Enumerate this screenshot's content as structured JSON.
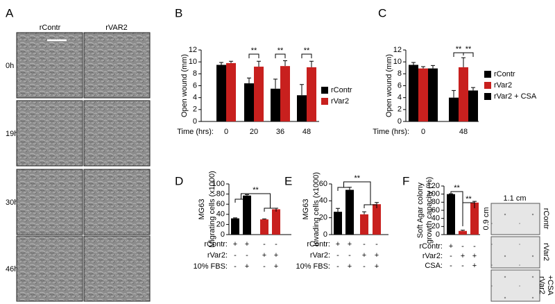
{
  "panel_a": {
    "label": "A",
    "columns": [
      "rContr",
      "rVAR2"
    ],
    "rows": [
      "0h",
      "19h",
      "30h",
      "46h"
    ]
  },
  "chart_data": [
    {
      "panel": "B",
      "type": "bar",
      "ylabel": "Open wound (mm)",
      "x_prefix": "Time (hrs):",
      "categories": [
        "0",
        "20",
        "36",
        "48"
      ],
      "series": [
        {
          "name": "rContr",
          "color": "#000000",
          "values": [
            9.5,
            6.4,
            5.5,
            4.4
          ],
          "errors": [
            0.4,
            0.9,
            1.6,
            1.8
          ]
        },
        {
          "name": "rVar2",
          "color": "#c8201e",
          "values": [
            9.8,
            9.2,
            9.3,
            9.1
          ],
          "errors": [
            0.3,
            0.9,
            0.9,
            1.0
          ]
        }
      ],
      "ylim": [
        0,
        12
      ],
      "yticks": [
        0,
        2,
        4,
        6,
        8,
        10,
        12
      ],
      "annotations": [
        "**",
        "**",
        "**"
      ]
    },
    {
      "panel": "C",
      "type": "bar",
      "ylabel": "Open wound (mm)",
      "x_prefix": "Time (hrs):",
      "categories": [
        "0",
        "48"
      ],
      "series": [
        {
          "name": "rContr",
          "color": "#000000",
          "values": [
            9.5,
            4.0
          ],
          "errors": [
            0.4,
            1.2
          ]
        },
        {
          "name": "rVar2",
          "color": "#c8201e",
          "values": [
            8.9,
            9.1
          ],
          "errors": [
            0.3,
            1.6
          ]
        },
        {
          "name": "rVar2 + CSA",
          "color": "#000000",
          "values": [
            8.9,
            5.2
          ],
          "errors": [
            0.5,
            0.5
          ]
        }
      ],
      "ylim": [
        0,
        12
      ],
      "yticks": [
        0,
        2,
        4,
        6,
        8,
        10,
        12
      ],
      "annotations": [
        "**",
        "**"
      ]
    },
    {
      "panel": "D",
      "type": "bar",
      "title": "MG63",
      "ylabel": [
        "Migrating cells (x1000)"
      ],
      "values": [
        32,
        77,
        30,
        50
      ],
      "errors": [
        1,
        2,
        1,
        2
      ],
      "colors": [
        "#000000",
        "#000000",
        "#c8201e",
        "#c8201e"
      ],
      "conditions": [
        {
          "label": "rContr:",
          "signs": [
            "+",
            "+",
            "-",
            "-"
          ]
        },
        {
          "label": "rVar2:",
          "signs": [
            "-",
            "-",
            "+",
            "+"
          ]
        },
        {
          "label": "10% FBS:",
          "signs": [
            "-",
            "+",
            "-",
            "+"
          ]
        }
      ],
      "ylim": [
        0,
        100
      ],
      "yticks": [
        0,
        20,
        40,
        60,
        80,
        100
      ],
      "annotations": [
        "**"
      ]
    },
    {
      "panel": "E",
      "type": "bar",
      "title": "MG63",
      "ylabel": [
        "Invading cells (x1000)"
      ],
      "values": [
        27,
        53,
        24,
        36
      ],
      "errors": [
        4,
        3,
        3,
        2
      ],
      "colors": [
        "#000000",
        "#000000",
        "#c8201e",
        "#c8201e"
      ],
      "conditions": [
        {
          "label": "rContr:",
          "signs": [
            "+",
            "+",
            "-",
            "-"
          ]
        },
        {
          "label": "rVar2:",
          "signs": [
            "-",
            "-",
            "+",
            "+"
          ]
        },
        {
          "label": "10% FBS:",
          "signs": [
            "-",
            "+",
            "-",
            "+"
          ]
        }
      ],
      "ylim": [
        0,
        60
      ],
      "yticks": [
        0,
        20,
        40,
        60
      ],
      "annotations": [
        "**"
      ]
    },
    {
      "panel": "F",
      "type": "bar",
      "ylabel": [
        "Soft Agar colony",
        "growth capacity (%)"
      ],
      "values": [
        100,
        9,
        79
      ],
      "errors": [
        1,
        2,
        3
      ],
      "colors": [
        "#000000",
        "#c8201e",
        "#c8201e"
      ],
      "conditions": [
        {
          "label": "rContr:",
          "signs": [
            "+",
            "-",
            "-"
          ]
        },
        {
          "label": "rVar2:",
          "signs": [
            "-",
            "+",
            "+"
          ]
        },
        {
          "label": "CSA:",
          "signs": [
            "-",
            "-",
            "+"
          ]
        }
      ],
      "ylim": [
        0,
        120
      ],
      "yticks": [
        0,
        20,
        40,
        60,
        80,
        100,
        120
      ],
      "annotations": [
        "**",
        "**"
      ]
    }
  ],
  "panel_f_images": {
    "width_label": "1.1 cm",
    "height_label": "0.9 cm",
    "rows": [
      [
        "rContr"
      ],
      [
        "rVar2"
      ],
      [
        "rVar2",
        "+CSA"
      ]
    ]
  }
}
